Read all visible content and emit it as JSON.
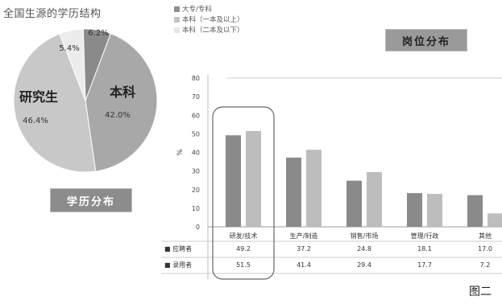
{
  "pie_title": "全国生源的学历结构",
  "legend": {
    "items": [
      {
        "label": "大专/专科",
        "color": "#8f8f8f"
      },
      {
        "label": "本科（一本及以上）",
        "color": "#c4c4c4"
      },
      {
        "label": "本科（二本及以下）",
        "color": "#e6e6e6"
      }
    ]
  },
  "right_box_label": "岗位分布",
  "left_box_label": "学历分布",
  "figure_label": "图二",
  "table": {
    "row_labels": [
      "■ 应聘者",
      "■ 录用者"
    ],
    "row1": [
      "49.2",
      "37.2",
      "24.8",
      "18.1",
      "17.0"
    ],
    "row2": [
      "51.5",
      "41.4",
      "29.4",
      "17.7",
      "7.2"
    ]
  },
  "chart_data": [
    {
      "type": "pie",
      "title": "全国生源的学历结构",
      "slices": [
        {
          "label": "本科",
          "value": 42.0,
          "value_label": "42.0%",
          "color": "#a8a8a8"
        },
        {
          "label": "研究生",
          "value": 46.4,
          "value_label": "46.4%",
          "color": "#c8c8c8"
        },
        {
          "label": "",
          "value": 5.4,
          "value_label": "5.4%",
          "color": "#ececec"
        },
        {
          "label": "",
          "value": 6.2,
          "value_label": "6.2%",
          "color": "#8a8a8a"
        }
      ]
    },
    {
      "type": "bar",
      "title": "岗位分布",
      "ylabel": "%",
      "ylim": [
        0,
        80
      ],
      "yticks": [
        0,
        10,
        20,
        30,
        40,
        50,
        60,
        70,
        80
      ],
      "categories": [
        "研发/技术",
        "生产/制造",
        "销售/市场",
        "管理/行政",
        "其他"
      ],
      "series": [
        {
          "name": "应聘者",
          "values": [
            49.2,
            37.2,
            24.8,
            18.1,
            17.0
          ],
          "color": "#8a8a8a"
        },
        {
          "name": "录用者",
          "values": [
            51.5,
            41.4,
            29.4,
            17.7,
            7.2
          ],
          "color": "#bdbdbd"
        }
      ],
      "highlight_category": 0,
      "grid": true
    }
  ]
}
